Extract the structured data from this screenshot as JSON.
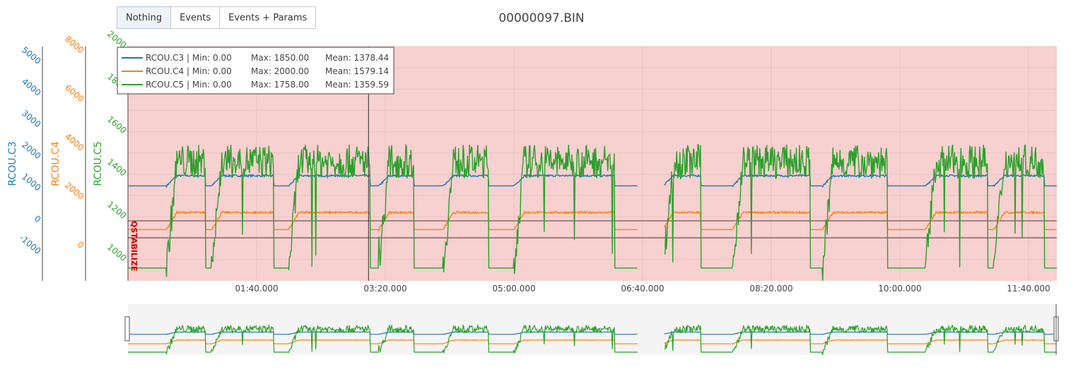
{
  "toolbar": {
    "buttons": [
      {
        "label": "Nothing",
        "active": true
      },
      {
        "label": "Events",
        "active": false
      },
      {
        "label": "Events + Params",
        "active": false
      }
    ]
  },
  "chart_title": "00000097.BIN",
  "colors": {
    "series_c3": "#1f77b4",
    "series_c4": "#ff7f0e",
    "series_c5": "#2ca02c",
    "mode_band": "#f7d0d0",
    "mode_label": "#cc0000",
    "rangeslider_bg": "#f4f4f4"
  },
  "mode_annotation": "QSTABILIZE",
  "chart_data": {
    "type": "line",
    "x_ticks": [
      "01:40.000",
      "03:20.000",
      "05:00.000",
      "06:40.000",
      "08:20.000",
      "10:00.000",
      "11:40.000"
    ],
    "x_tick_seconds": [
      100,
      200,
      300,
      400,
      500,
      600,
      700
    ],
    "x_range_seconds": [
      0,
      722
    ],
    "gap_seconds": [
      396,
      417
    ],
    "hover_x_seconds": 187,
    "axes": [
      {
        "label": "RCOU.C3",
        "color": "#1f77b4",
        "ticks": [
          -1000,
          0,
          1000,
          2000,
          3000,
          4000,
          5000
        ],
        "range": [
          -1900,
          5500
        ]
      },
      {
        "label": "RCOU.C4",
        "color": "#ff7f0e",
        "ticks": [
          0,
          2000,
          4000,
          6000,
          8000
        ],
        "range": [
          -1400,
          8200
        ]
      },
      {
        "label": "RCOU.C5",
        "color": "#2ca02c",
        "ticks": [
          1000,
          1200,
          1400,
          1600,
          1800,
          2000
        ],
        "range": [
          900,
          2000
        ]
      }
    ],
    "series": [
      {
        "name": "RCOU.C3",
        "axis": 0,
        "min": 0.0,
        "max": 1850.0,
        "mean": 1378.44,
        "idle": 1100,
        "active": 1420,
        "segments": [
          [
            30,
            60
          ],
          [
            65,
            113
          ],
          [
            125,
            188
          ],
          [
            195,
            222
          ],
          [
            245,
            280
          ],
          [
            300,
            378
          ],
          [
            416,
            445
          ],
          [
            470,
            530
          ],
          [
            540,
            590
          ],
          [
            620,
            668
          ],
          [
            673,
            712
          ]
        ]
      },
      {
        "name": "RCOU.C4",
        "axis": 1,
        "min": 0.0,
        "max": 2000.0,
        "mean": 1579.14,
        "idle": 700,
        "active": 1400,
        "segments": [
          [
            30,
            60
          ],
          [
            65,
            113
          ],
          [
            125,
            188
          ],
          [
            195,
            222
          ],
          [
            245,
            280
          ],
          [
            300,
            378
          ],
          [
            416,
            445
          ],
          [
            470,
            530
          ],
          [
            540,
            590
          ],
          [
            620,
            668
          ],
          [
            673,
            712
          ]
        ]
      },
      {
        "name": "RCOU.C5",
        "axis": 2,
        "min": 0.0,
        "max": 1758.0,
        "mean": 1359.59,
        "idle": 960,
        "active": 1460,
        "segments": [
          [
            30,
            60
          ],
          [
            65,
            113
          ],
          [
            125,
            188
          ],
          [
            195,
            222
          ],
          [
            245,
            280
          ],
          [
            300,
            378
          ],
          [
            416,
            445
          ],
          [
            470,
            530
          ],
          [
            540,
            590
          ],
          [
            620,
            668
          ],
          [
            673,
            712
          ]
        ]
      }
    ],
    "legend": [
      {
        "name": "RCOU.C3",
        "min": "Min: 0.00",
        "max": "Max: 1850.00",
        "mean": "Mean: 1378.44"
      },
      {
        "name": "RCOU.C4",
        "min": "Min: 0.00",
        "max": "Max: 2000.00",
        "mean": "Mean: 1579.14"
      },
      {
        "name": "RCOU.C5",
        "min": "Min: 0.00",
        "max": "Max: 1758.00",
        "mean": "Mean: 1359.59"
      }
    ],
    "legend_position": "top-left",
    "grid": true,
    "rangeslider": true
  }
}
